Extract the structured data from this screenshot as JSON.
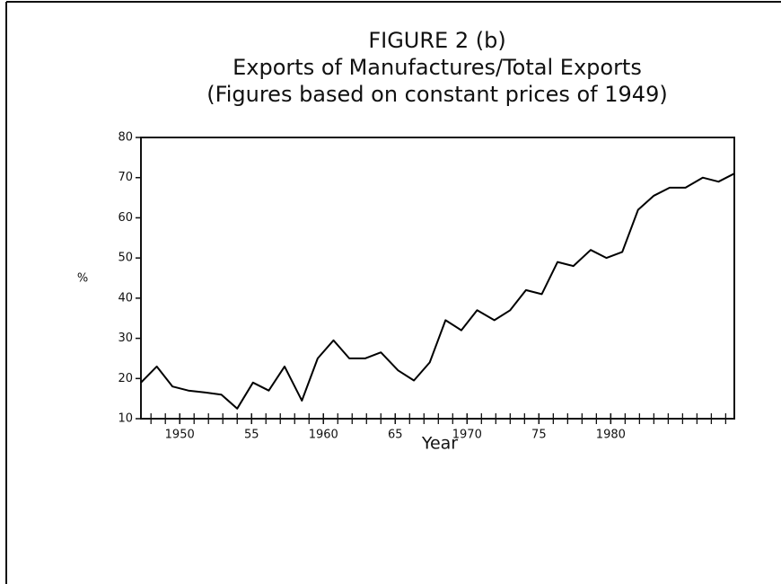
{
  "chart_data": {
    "type": "line",
    "title": "FIGURE 2 (b)",
    "subtitle": [
      "Exports of Manufactures/Total Exports",
      "(Figures based on constant prices of 1949)"
    ],
    "x_label": "Year",
    "y_label": "%",
    "x": [
      1947.3,
      1948.4,
      1949.5,
      1950.6,
      1951.8,
      1952.9,
      1954.0,
      1955.1,
      1956.2,
      1957.3,
      1958.5,
      1959.6,
      1960.7,
      1961.8,
      1962.9,
      1964.0,
      1965.2,
      1966.3,
      1967.4,
      1968.5,
      1969.6,
      1970.7,
      1971.9,
      1973.0,
      1974.1,
      1975.2,
      1976.3,
      1977.4,
      1978.6,
      1979.7,
      1980.8,
      1981.9,
      1983.0,
      1984.1,
      1985.2,
      1986.4,
      1987.5,
      1988.6
    ],
    "series": [
      {
        "color": "#000000",
        "values": [
          19,
          23,
          18,
          17,
          16.5,
          16,
          12.5,
          19,
          17,
          23,
          14.5,
          25,
          29.5,
          25,
          25,
          26.5,
          22,
          19.5,
          24,
          34.5,
          32,
          37,
          34.5,
          37,
          42,
          41,
          49,
          48,
          52,
          50,
          51.5,
          62,
          65.5,
          67.5,
          67.5,
          70,
          69,
          71
        ]
      }
    ],
    "xlim": [
      1947.3,
      1988.6
    ],
    "xticks": [
      1950,
      {
        "value": 1955,
        "label": "55"
      },
      1960,
      {
        "value": 1965,
        "label": "65"
      },
      1970,
      {
        "value": 1975,
        "label": "75"
      },
      1980
    ],
    "ylim": [
      10,
      80
    ],
    "yticks": [
      10,
      20,
      30,
      40,
      50,
      60,
      70,
      80
    ],
    "grid": false
  }
}
